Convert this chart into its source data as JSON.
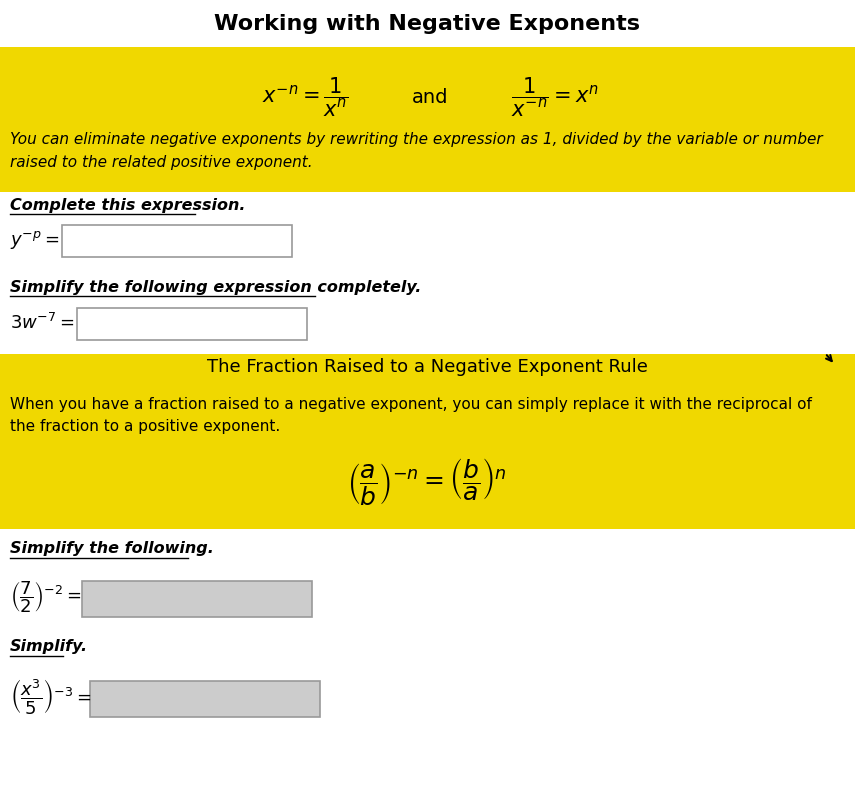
{
  "title": "Working with Negative Exponents",
  "title_fontsize": 16,
  "title_fontweight": "bold",
  "yellow_bg": "#f0d800",
  "white_bg": "#ffffff",
  "light_gray_bg": "#c8ccd0",
  "section1_label": "Complete this expression.",
  "section2_label": "Simplify the following expression completely.",
  "section3_title": "The Fraction Raised to a Negative Exponent Rule",
  "section3_text1": "When you have a fraction raised to a negative exponent, you can simply replace it with the reciprocal of",
  "section3_text2": "the fraction to a positive exponent.",
  "yellow_text1": "You can eliminate negative exponents by rewriting the expression as 1, divided by the variable or number",
  "yellow_text2": "raised to the related positive exponent.",
  "section4_label": "Simplify the following.",
  "section5_label": "Simplify."
}
